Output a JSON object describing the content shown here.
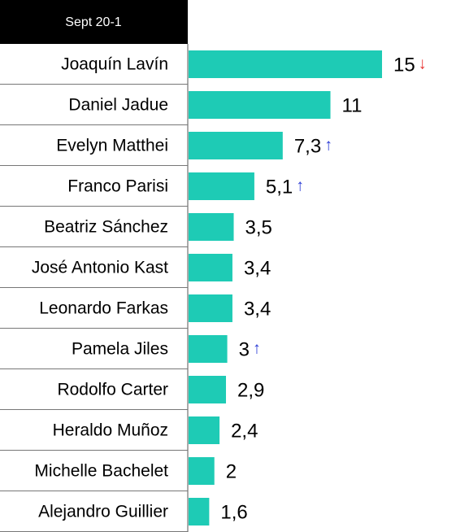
{
  "chart_data": {
    "type": "barh",
    "header": "Sept 20-1",
    "categories": [
      "Joaquín Lavín",
      "Daniel Jadue",
      "Evelyn Matthei",
      "Franco Parisi",
      "Beatriz Sánchez",
      "José Antonio Kast",
      "Leonardo Farkas",
      "Pamela Jiles",
      "Rodolfo Carter",
      "Heraldo Muñoz",
      "Michelle Bachelet",
      "Alejandro Guillier"
    ],
    "values": [
      15,
      11,
      7.3,
      5.1,
      3.5,
      3.4,
      3.4,
      3,
      2.9,
      2.4,
      2,
      1.6
    ],
    "value_labels": [
      "15",
      "11",
      "7,3",
      "5,1",
      "3,5",
      "3,4",
      "3,4",
      "3",
      "2,9",
      "2,4",
      "2",
      "1,6"
    ],
    "trend": [
      {
        "text": "↓",
        "color": "#e8312f"
      },
      null,
      {
        "text": "↑",
        "color": "#2f3fd6"
      },
      {
        "text": "↑",
        "color": "#2f3fd6"
      },
      null,
      null,
      null,
      {
        "text": "↑",
        "color": "#2f3fd6"
      },
      null,
      null,
      null,
      null
    ],
    "color": "#1ecbb5",
    "xlim": [
      0,
      15
    ]
  }
}
